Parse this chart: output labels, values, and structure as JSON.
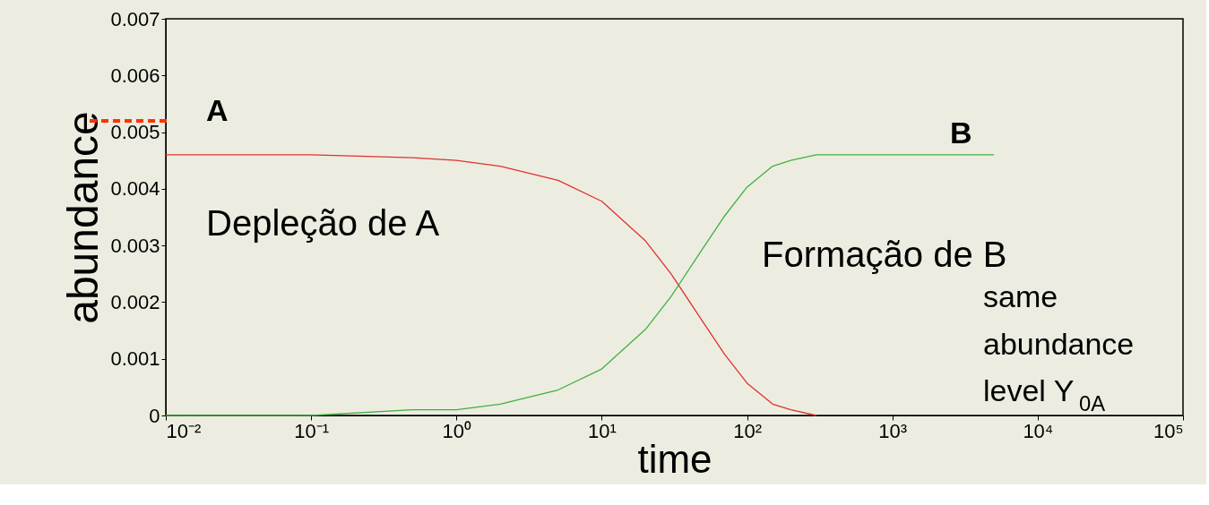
{
  "chart_data": {
    "type": "line",
    "xlabel": "time",
    "ylabel": "abundance",
    "xlim": [
      0.01,
      100000
    ],
    "ylim": [
      0,
      0.007
    ],
    "xticks": [
      {
        "value": 0.01,
        "label": "10⁻²"
      },
      {
        "value": 0.1,
        "label": "10⁻¹"
      },
      {
        "value": 1,
        "label": "10⁰"
      },
      {
        "value": 10,
        "label": "10¹"
      },
      {
        "value": 100,
        "label": "10²"
      },
      {
        "value": 1000,
        "label": "10³"
      },
      {
        "value": 10000,
        "label": "10⁴"
      },
      {
        "value": 100000,
        "label": "10⁵"
      }
    ],
    "yticks": [
      0,
      0.001,
      0.002,
      0.003,
      0.004,
      0.005,
      0.006,
      0.007
    ],
    "log": "x",
    "grid": false,
    "legend": false,
    "marker": "none",
    "line_style": "solid",
    "x": [
      0.01,
      0.1,
      0.5,
      1,
      2,
      5,
      10,
      20,
      30,
      50,
      70,
      100,
      150,
      200,
      300,
      500,
      1000,
      5000
    ],
    "series": [
      {
        "color": "#e03030",
        "values": [
          0.0046,
          0.0046,
          0.00455,
          0.0045,
          0.0044,
          0.00415,
          0.00378,
          0.00308,
          0.0025,
          0.00164,
          0.00108,
          0.00057,
          0.0002,
          0.0001,
          0,
          null,
          null,
          null
        ]
      },
      {
        "color": "#40b040",
        "values": [
          0,
          0,
          0.0001,
          0.0001,
          0.0002,
          0.00045,
          0.00082,
          0.00152,
          0.0021,
          0.00296,
          0.00352,
          0.00403,
          0.0044,
          0.0045,
          0.0046,
          0.0046,
          0.0046,
          0.0046
        ]
      }
    ],
    "ref_lines": [
      {
        "axis": "y",
        "value": 0.0052,
        "label": "A",
        "color": "#ff3300",
        "line_style": "dashed"
      }
    ],
    "annotations": [
      "B",
      "Depleção de A",
      "Formação de B",
      "same abundance level Y$_{0A}$"
    ]
  }
}
